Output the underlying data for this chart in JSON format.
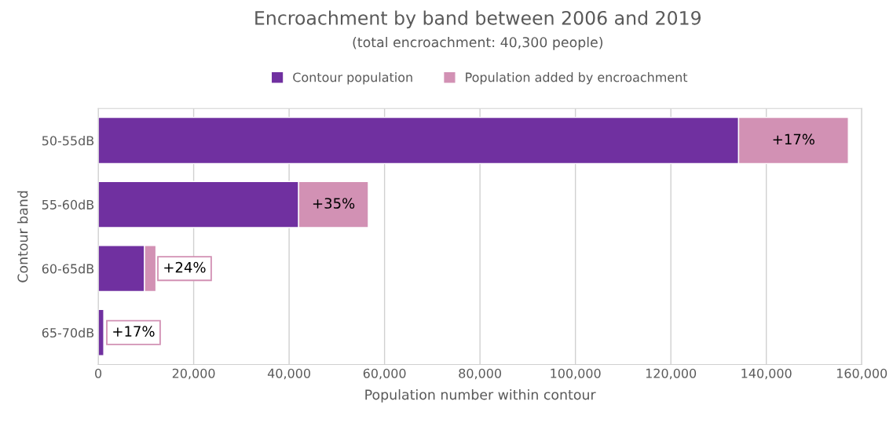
{
  "chart_data": {
    "type": "bar",
    "orientation": "horizontal",
    "stacked": true,
    "title": "Encroachment by band between 2006 and 2019",
    "subtitle": "(total encroachment: 40,300 people)",
    "xlabel": "Population number within contour",
    "ylabel": "Contour band",
    "categories": [
      "50-55dB",
      "55-60dB",
      "60-65dB",
      "65-70dB"
    ],
    "series": [
      {
        "name": "Contour population",
        "color": "#7030a0",
        "values": [
          134200,
          42000,
          9700,
          1200
        ]
      },
      {
        "name": "Population added by encroachment",
        "color": "#d291b4",
        "values": [
          23000,
          14600,
          2400,
          200
        ]
      }
    ],
    "annotations": [
      {
        "text": "+17%",
        "x": 157200,
        "y": "50-55dB"
      },
      {
        "text": "+35%",
        "x": 56600,
        "y": "55-60dB"
      },
      {
        "text": "+24%",
        "x": 12100,
        "y": "60-65dB"
      },
      {
        "text": "+17%",
        "x": 1400,
        "y": "65-70dB"
      }
    ],
    "xlim": [
      0,
      160000
    ],
    "xticks": [
      {
        "value": 0,
        "label": "0"
      },
      {
        "value": 20000,
        "label": "20,000"
      },
      {
        "value": 40000,
        "label": "40,000"
      },
      {
        "value": 60000,
        "label": "60,000"
      },
      {
        "value": 80000,
        "label": "80,000"
      },
      {
        "value": 100000,
        "label": "100,000"
      },
      {
        "value": 120000,
        "label": "120,000"
      },
      {
        "value": 140000,
        "label": "140,000"
      },
      {
        "value": 160000,
        "label": "160,000"
      }
    ],
    "grid": "x",
    "legend": "top"
  }
}
